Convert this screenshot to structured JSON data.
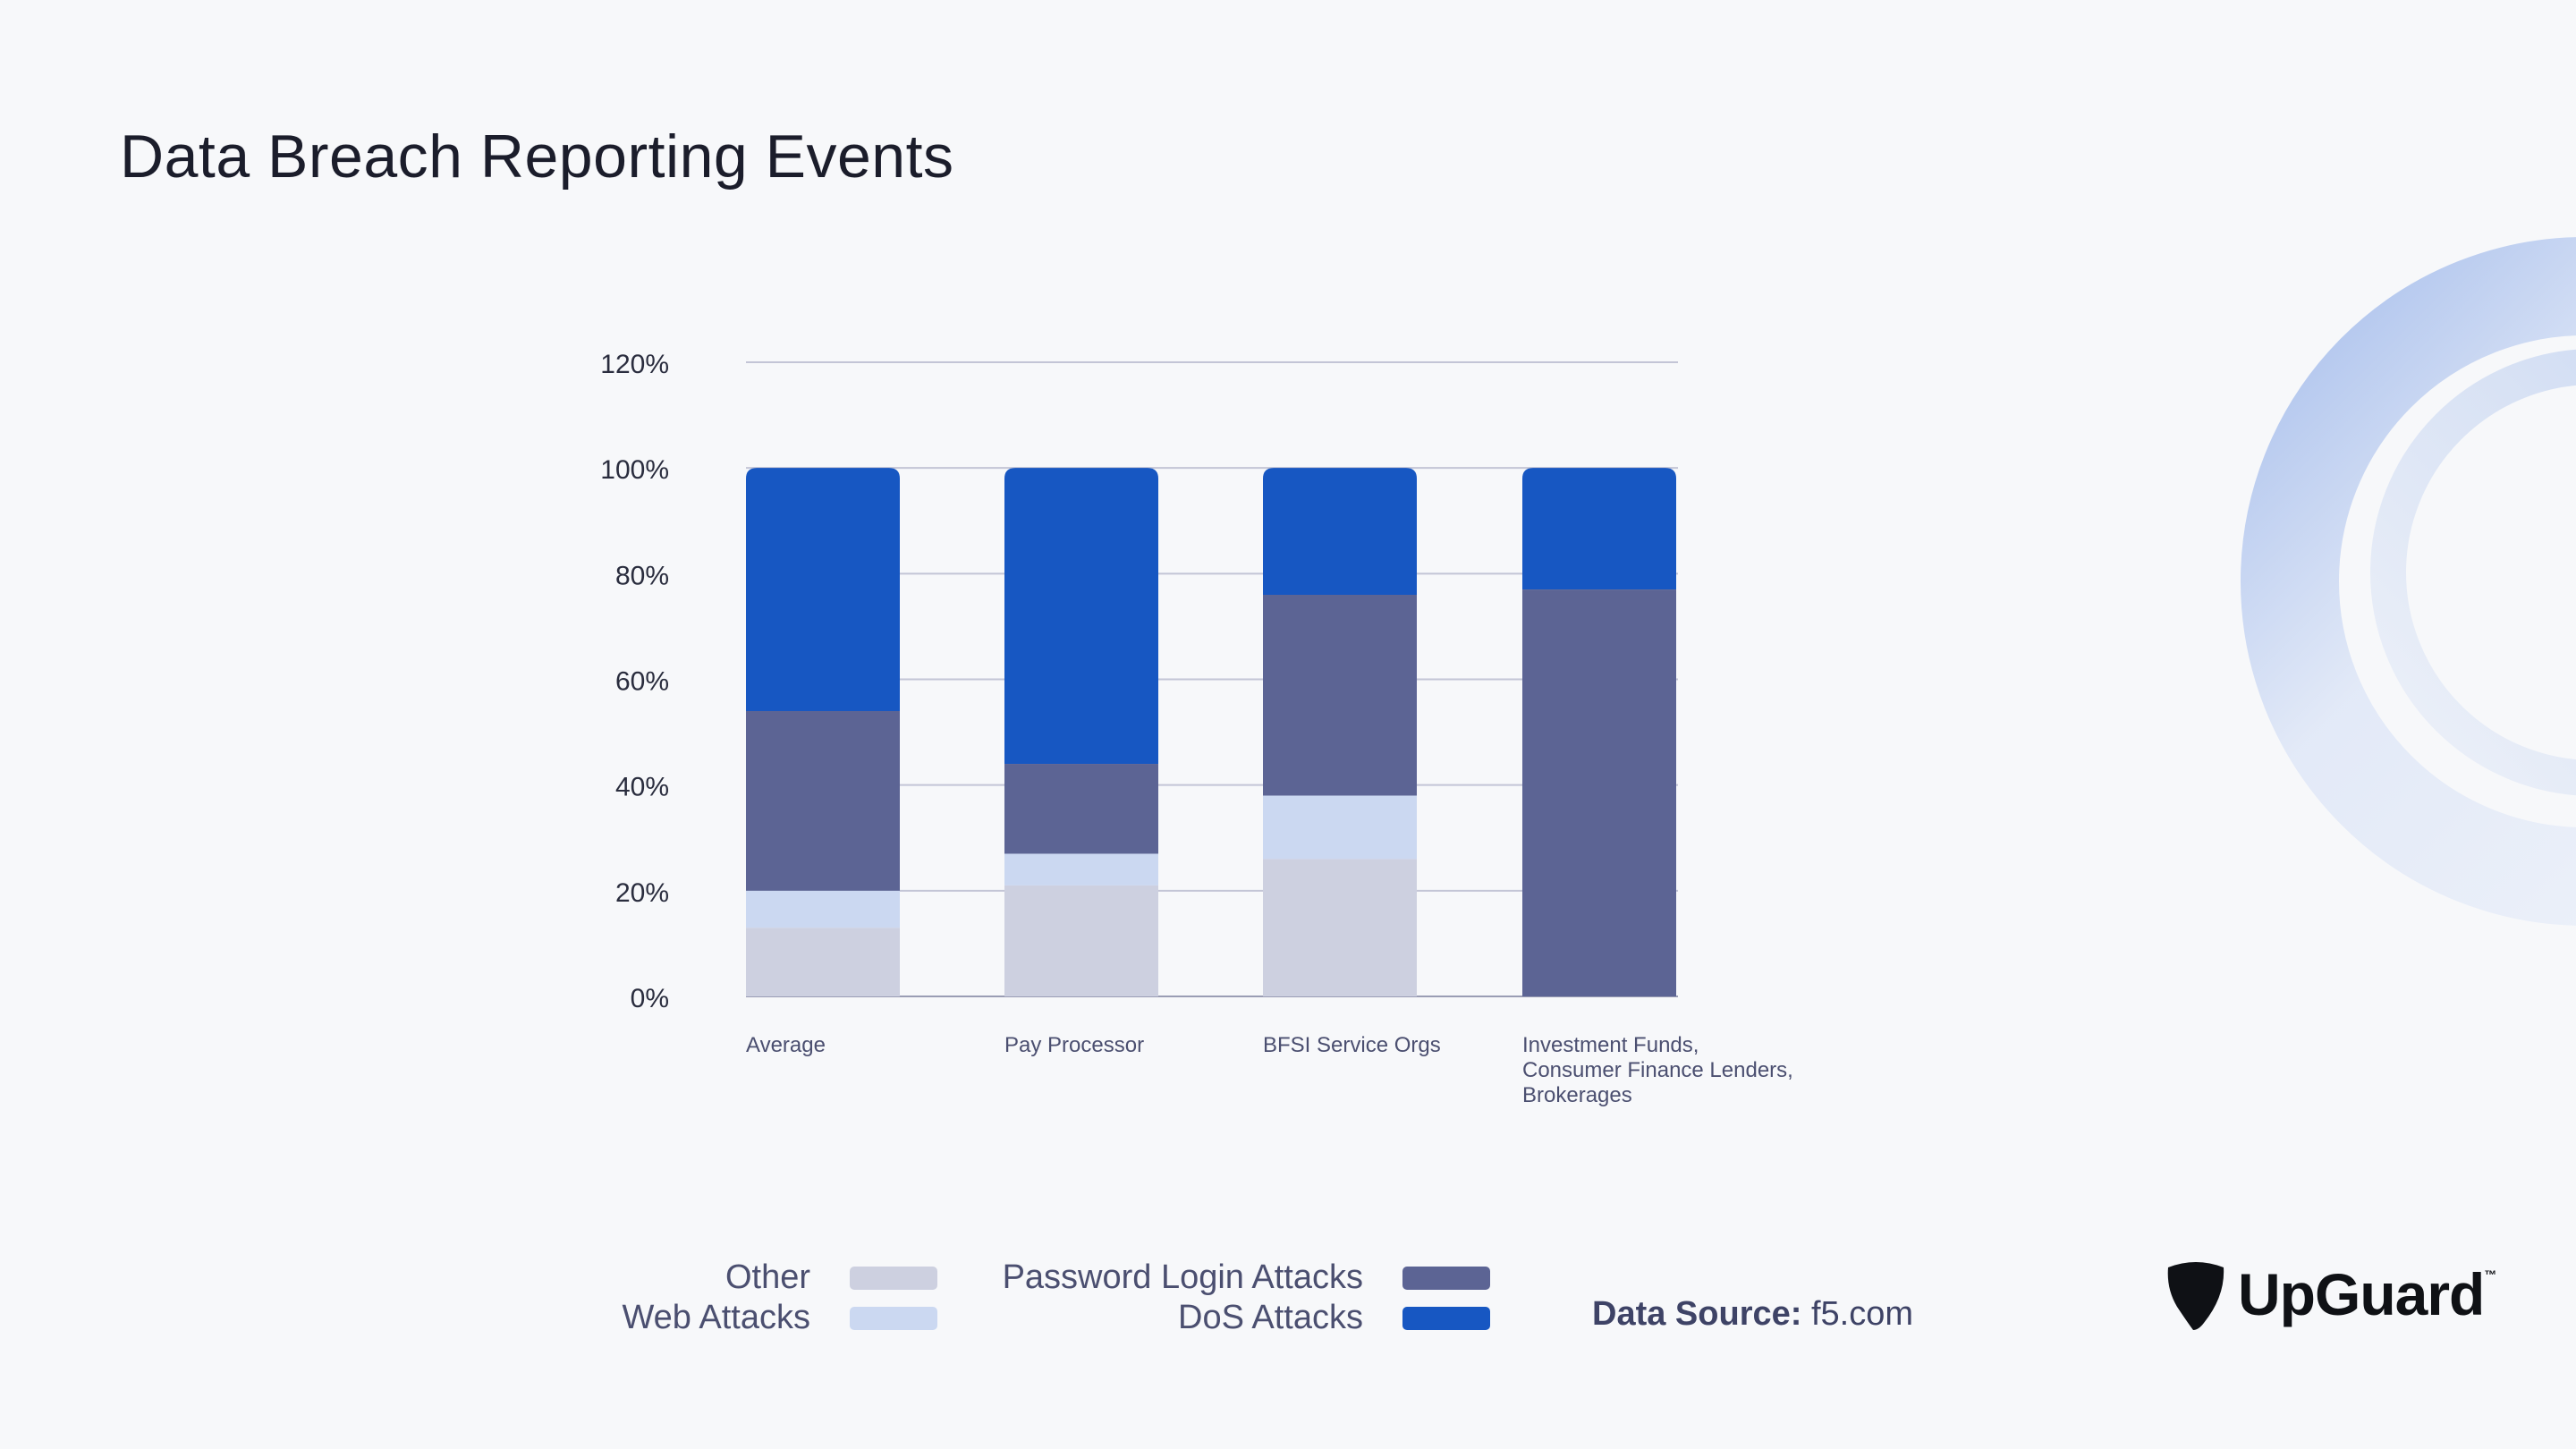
{
  "title": "Data Breach Reporting Events",
  "chart_data": {
    "type": "bar",
    "stacked": true,
    "categories": [
      "Average",
      "Pay Processor",
      "BFSI Service Orgs",
      "Investment Funds, Consumer Finance Lenders, Brokerages"
    ],
    "series": [
      {
        "name": "Other",
        "color": "#cdd0e0",
        "values": [
          13,
          21,
          26,
          0
        ]
      },
      {
        "name": "Web Attacks",
        "color": "#cbd8f1",
        "values": [
          7,
          6,
          12,
          0
        ]
      },
      {
        "name": "Password Login Attacks",
        "color": "#5c6494",
        "values": [
          34,
          17,
          38,
          77
        ]
      },
      {
        "name": "DoS Attacks",
        "color": "#1757c2",
        "values": [
          46,
          56,
          24,
          23
        ]
      }
    ],
    "yticks": [
      "0%",
      "20%",
      "40%",
      "60%",
      "80%",
      "100%",
      "120%"
    ],
    "ylim": [
      0,
      120
    ],
    "grid": true,
    "legend_position": "bottom"
  },
  "legend": {
    "other": "Other",
    "web_attacks": "Web Attacks",
    "password_login_attacks": "Password Login Attacks",
    "dos_attacks": "DoS Attacks"
  },
  "source": {
    "label": "Data Source:",
    "value": "f5.com"
  },
  "logo": {
    "text": "UpGuard",
    "tm": "™"
  }
}
